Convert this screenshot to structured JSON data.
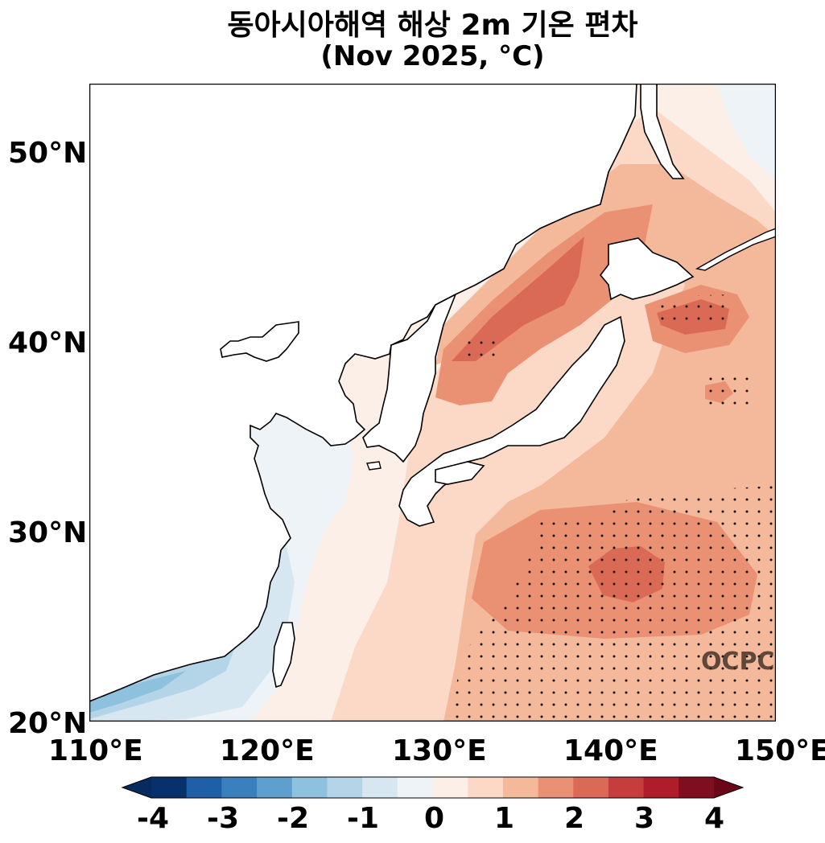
{
  "title": {
    "line1": "동아시아해역 해상 2m 기온 편차",
    "line2": "(Nov 2025, °C)"
  },
  "axes": {
    "x_ticks": [
      "110°E",
      "120°E",
      "130°E",
      "140°E",
      "150°E"
    ],
    "y_ticks": [
      "50°N",
      "40°N",
      "30°N",
      "20°N"
    ],
    "lon_range": [
      110,
      150
    ],
    "lat_range": [
      20,
      53.5
    ]
  },
  "watermark": "OCPC",
  "colorbar": {
    "tick_labels": [
      "-4",
      "-3",
      "-2",
      "-1",
      "0",
      "1",
      "2",
      "3",
      "4"
    ],
    "levels": [
      -4,
      -3.5,
      -3,
      -2.5,
      -2,
      -1.5,
      -1,
      -0.5,
      0,
      0.5,
      1,
      1.5,
      2,
      2.5,
      3,
      3.5,
      4
    ],
    "colors": [
      "#08306b",
      "#1f5fa8",
      "#3a7fbe",
      "#5f9fce",
      "#8ec1de",
      "#b4d5e8",
      "#d6e7f1",
      "#edf3f6",
      "#fbefe8",
      "#fcd9c7",
      "#f4b89a",
      "#ea9173",
      "#da6a55",
      "#c53e3d",
      "#ae1d2a",
      "#7f0f1f"
    ],
    "under_color": "#072b5e",
    "over_color": "#6b0618"
  },
  "map_style": {
    "land_color": "#ffffff",
    "coastline_color": "#000000",
    "stipple_meaning_visible": false
  }
}
